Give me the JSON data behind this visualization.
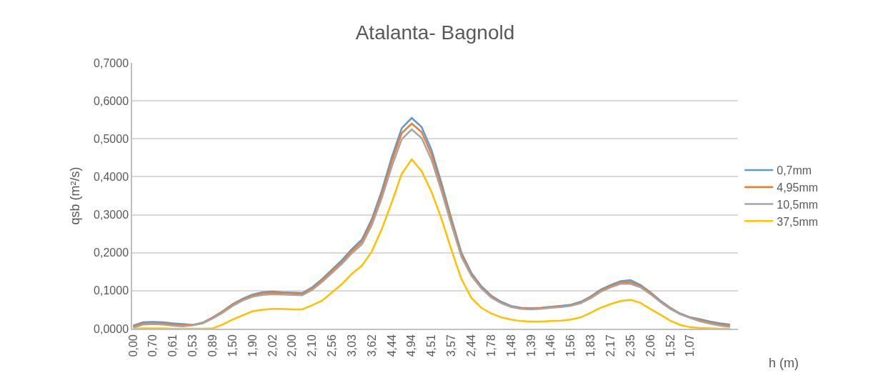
{
  "chart_data": {
    "type": "line",
    "title": "Atalanta- Bagnold",
    "xlabel": "h (m)",
    "ylabel": "qsb (m²/s)",
    "categories": [
      "0,00",
      null,
      "0,70",
      null,
      "0,61",
      null,
      "0,53",
      null,
      "0,89",
      null,
      "1,50",
      null,
      "1,90",
      null,
      "2,02",
      null,
      "2,00",
      null,
      "2,10",
      null,
      "2,56",
      null,
      "3,03",
      null,
      "3,62",
      null,
      "4,44",
      null,
      "4,94",
      null,
      "4,51",
      null,
      "3,57",
      null,
      "2,44",
      null,
      "1,78",
      null,
      "1,48",
      null,
      "1,39",
      null,
      "1,46",
      null,
      "1,56",
      null,
      "1,83",
      null,
      "2,17",
      null,
      "2,35",
      null,
      "2,06",
      null,
      "1,52",
      null,
      "1,07",
      null,
      null,
      null,
      null
    ],
    "series": [
      {
        "name": "0,7mm",
        "color": "#5b9bd5",
        "values": [
          0.008,
          0.017,
          0.018,
          0.017,
          0.014,
          0.012,
          0.01,
          0.016,
          0.03,
          0.046,
          0.065,
          0.079,
          0.09,
          0.096,
          0.098,
          0.096,
          0.095,
          0.094,
          0.109,
          0.131,
          0.156,
          0.181,
          0.21,
          0.235,
          0.289,
          0.364,
          0.452,
          0.528,
          0.555,
          0.531,
          0.47,
          0.383,
          0.289,
          0.2,
          0.147,
          0.112,
          0.087,
          0.071,
          0.06,
          0.055,
          0.054,
          0.055,
          0.058,
          0.06,
          0.063,
          0.071,
          0.085,
          0.103,
          0.115,
          0.125,
          0.128,
          0.115,
          0.096,
          0.074,
          0.055,
          0.04,
          0.03,
          0.025,
          0.019,
          0.014,
          0.011
        ]
      },
      {
        "name": "4,95mm",
        "color": "#ed7d31",
        "values": [
          0.005,
          0.014,
          0.015,
          0.014,
          0.011,
          0.009,
          0.01,
          0.015,
          0.029,
          0.045,
          0.063,
          0.077,
          0.087,
          0.093,
          0.095,
          0.094,
          0.093,
          0.091,
          0.106,
          0.128,
          0.152,
          0.176,
          0.205,
          0.229,
          0.282,
          0.355,
          0.441,
          0.515,
          0.54,
          0.518,
          0.458,
          0.373,
          0.282,
          0.195,
          0.143,
          0.109,
          0.085,
          0.069,
          0.058,
          0.054,
          0.053,
          0.054,
          0.057,
          0.058,
          0.061,
          0.069,
          0.083,
          0.1,
          0.112,
          0.122,
          0.123,
          0.112,
          0.094,
          0.072,
          0.054,
          0.039,
          0.029,
          0.022,
          0.016,
          0.011,
          0.008
        ]
      },
      {
        "name": "10,5mm",
        "color": "#a5a5a5",
        "values": [
          0.002,
          0.011,
          0.012,
          0.011,
          0.008,
          0.006,
          0.009,
          0.014,
          0.027,
          0.042,
          0.06,
          0.074,
          0.084,
          0.089,
          0.091,
          0.09,
          0.089,
          0.088,
          0.102,
          0.123,
          0.147,
          0.171,
          0.199,
          0.222,
          0.273,
          0.344,
          0.427,
          0.499,
          0.525,
          0.502,
          0.444,
          0.362,
          0.273,
          0.189,
          0.139,
          0.106,
          0.082,
          0.067,
          0.057,
          0.052,
          0.051,
          0.052,
          0.055,
          0.057,
          0.06,
          0.067,
          0.08,
          0.097,
          0.109,
          0.118,
          0.118,
          0.109,
          0.091,
          0.07,
          0.052,
          0.038,
          0.028,
          0.019,
          0.013,
          0.008,
          0.005
        ]
      },
      {
        "name": "37,5mm",
        "color": "#ffc000",
        "values": [
          0.0,
          0.001,
          0.001,
          0.001,
          0.0,
          0.0,
          0.0,
          0.0,
          0.001,
          0.011,
          0.024,
          0.035,
          0.046,
          0.05,
          0.052,
          0.052,
          0.051,
          0.051,
          0.062,
          0.074,
          0.096,
          0.118,
          0.145,
          0.166,
          0.204,
          0.263,
          0.333,
          0.408,
          0.446,
          0.415,
          0.36,
          0.289,
          0.207,
          0.131,
          0.081,
          0.055,
          0.04,
          0.03,
          0.024,
          0.02,
          0.019,
          0.019,
          0.02,
          0.021,
          0.024,
          0.03,
          0.042,
          0.055,
          0.065,
          0.073,
          0.076,
          0.068,
          0.052,
          0.037,
          0.021,
          0.01,
          0.004,
          0.002,
          0.001,
          0.0,
          0.0
        ]
      }
    ],
    "ylim": [
      0,
      0.7
    ],
    "yticks": [
      {
        "value": 0,
        "label": "0,0000"
      },
      {
        "value": 0.1,
        "label": "0,1000"
      },
      {
        "value": 0.2,
        "label": "0,2000"
      },
      {
        "value": 0.3,
        "label": "0,3000"
      },
      {
        "value": 0.4,
        "label": "0,4000"
      },
      {
        "value": 0.5,
        "label": "0,5000"
      },
      {
        "value": 0.6,
        "label": "0,6000"
      },
      {
        "value": 0.7,
        "label": "0,7000"
      }
    ],
    "grid": "y",
    "legend": "right",
    "marker": "none",
    "line_style": "solid"
  }
}
